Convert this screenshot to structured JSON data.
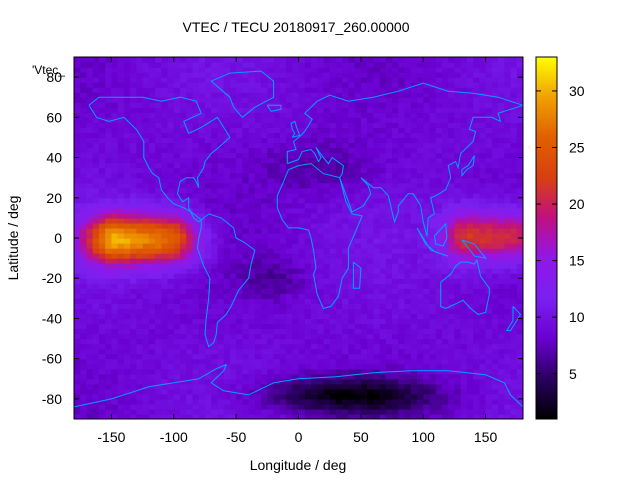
{
  "chart_data": {
    "type": "heatmap",
    "title": "VTEC / TECU 20180917_260.00000",
    "key_label": "'Vtec_",
    "xlabel": "Longitude / deg",
    "ylabel": "Latitude / deg",
    "xlim": [
      -180,
      180
    ],
    "ylim": [
      -90,
      90
    ],
    "x_ticks": [
      -150,
      -100,
      -50,
      0,
      50,
      100,
      150
    ],
    "y_ticks": [
      -80,
      -60,
      -40,
      -20,
      0,
      20,
      40,
      60,
      80
    ],
    "colorbar": {
      "range": [
        1,
        33
      ],
      "ticks": [
        5,
        10,
        15,
        20,
        25,
        30
      ],
      "palette": [
        "#000000",
        "#2a0060",
        "#6a00d0",
        "#7a20f0",
        "#9018e8",
        "#c01080",
        "#d84010",
        "#e06000",
        "#f0a000",
        "#ffff00"
      ]
    },
    "grid": false,
    "legend": "top-left",
    "features": {
      "equatorial_anomaly_pacific_east": {
        "lon_range": [
          -180,
          -70
        ],
        "lat_range": [
          -20,
          25
        ],
        "peak_tecu": 30
      },
      "equatorial_anomaly_pacific_west": {
        "lon_range": [
          125,
          180
        ],
        "lat_range": [
          -20,
          22
        ],
        "peak_tecu": 22
      },
      "background_tecu": 9,
      "polar_minimum_tecu": 2
    },
    "coastline_color": "#00a0ff"
  }
}
